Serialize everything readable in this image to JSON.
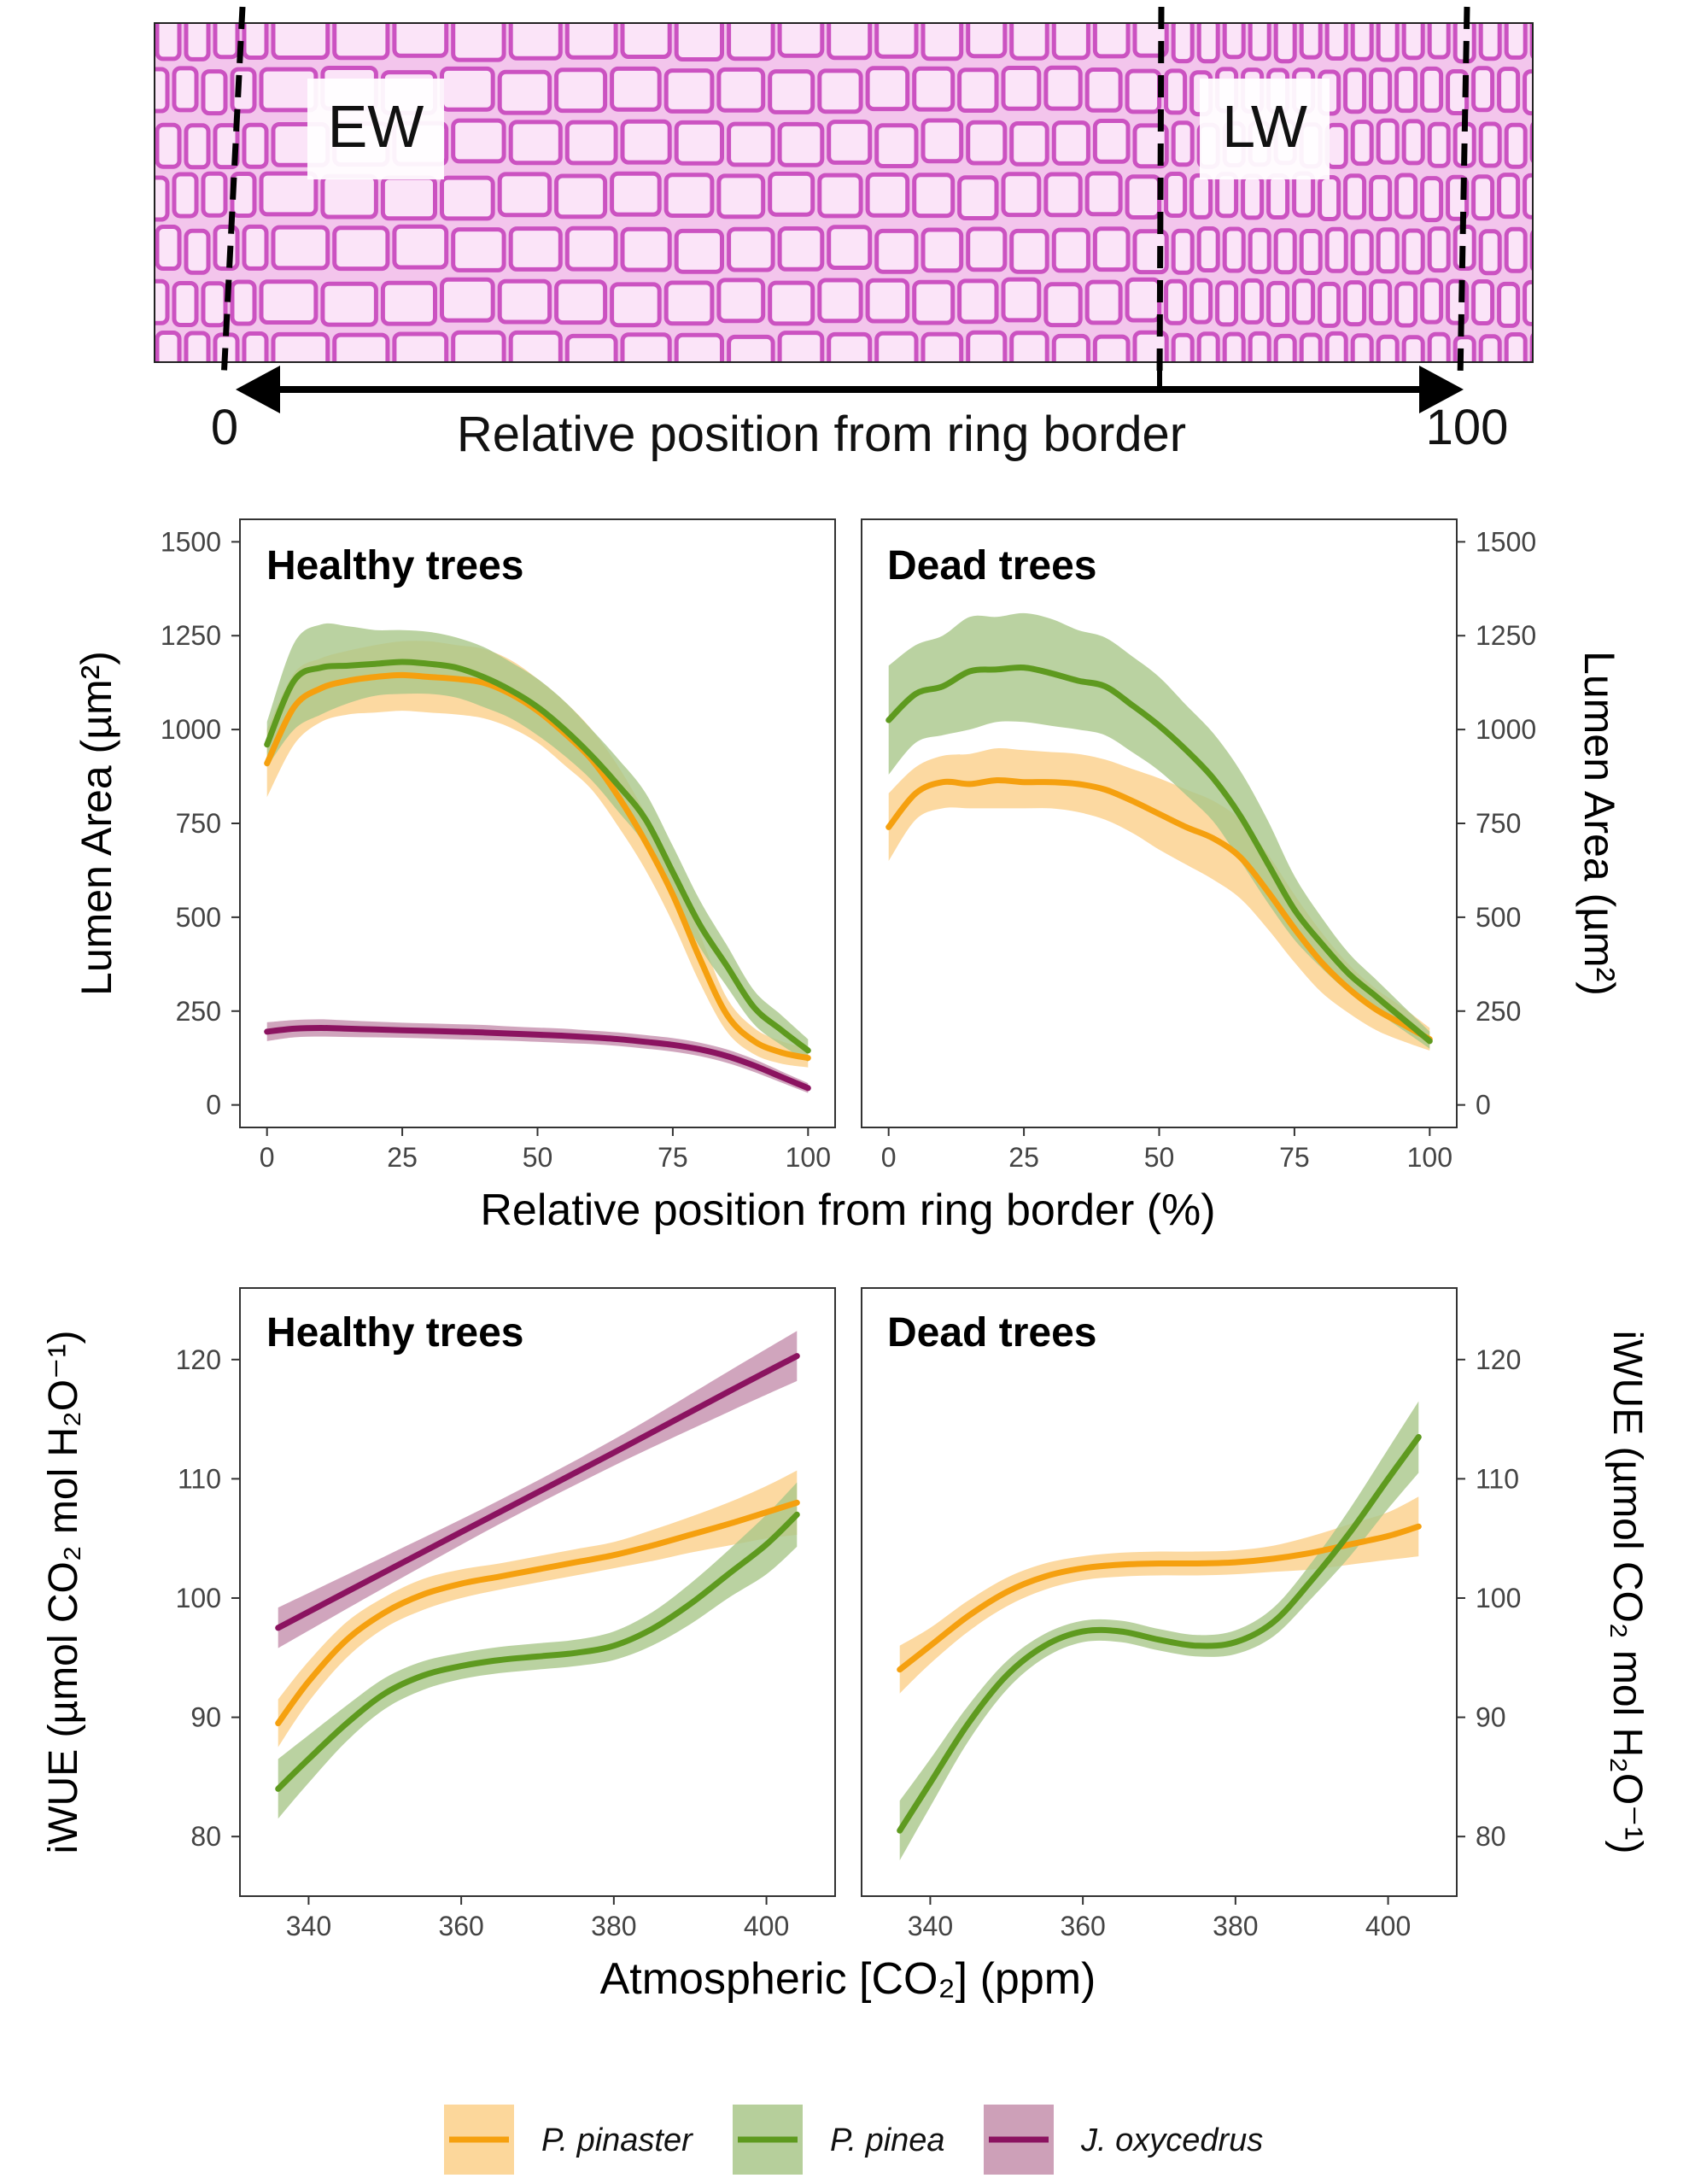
{
  "micrograph": {
    "ew_label": "EW",
    "lw_label": "LW",
    "axis_start": "0",
    "axis_end": "100",
    "axis_label": "Relative position from ring border"
  },
  "colors": {
    "pinaster": "#f5a00f",
    "pinaster_band": "#fbd08a",
    "pinea": "#5e9a1f",
    "pinea_band": "#a9c789",
    "oxycedrus": "#8b1360",
    "oxycedrus_band": "#c48fac",
    "tissue_bg": "#f3c5ec",
    "cell_wall": "#cb52c1"
  },
  "legend": {
    "items": [
      {
        "label": "P. pinaster",
        "color_key": "pinaster"
      },
      {
        "label": "P. pinea",
        "color_key": "pinea"
      },
      {
        "label": "J. oxycedrus",
        "color_key": "oxycedrus"
      }
    ]
  },
  "chart_data": [
    {
      "type": "line",
      "title": "Healthy trees",
      "xlabel": "Relative position from ring border (%)",
      "ylabel": "Lumen Area (µm²)",
      "xlim": [
        -5,
        105
      ],
      "ylim": [
        -60,
        1560
      ],
      "xticks": [
        0,
        25,
        50,
        75,
        100
      ],
      "yticks": [
        0,
        250,
        500,
        750,
        1000,
        1250,
        1500
      ],
      "series": [
        {
          "name": "P. pinaster",
          "color_key": "pinaster",
          "x": [
            0,
            5,
            10,
            15,
            20,
            25,
            30,
            35,
            40,
            45,
            50,
            55,
            60,
            65,
            70,
            75,
            80,
            85,
            90,
            95,
            100
          ],
          "y": [
            910,
            1060,
            1110,
            1130,
            1140,
            1145,
            1140,
            1135,
            1125,
            1095,
            1050,
            990,
            920,
            820,
            700,
            560,
            390,
            240,
            170,
            140,
            125
          ],
          "lower": [
            820,
            960,
            1020,
            1040,
            1045,
            1050,
            1045,
            1040,
            1030,
            1005,
            965,
            905,
            840,
            740,
            625,
            485,
            325,
            195,
            135,
            110,
            100
          ],
          "upper": [
            1000,
            1150,
            1190,
            1210,
            1225,
            1235,
            1235,
            1225,
            1215,
            1185,
            1135,
            1075,
            1000,
            900,
            775,
            635,
            455,
            285,
            205,
            170,
            150
          ]
        },
        {
          "name": "P. pinea",
          "color_key": "pinea",
          "x": [
            0,
            5,
            10,
            15,
            20,
            25,
            30,
            35,
            40,
            45,
            50,
            55,
            60,
            65,
            70,
            75,
            80,
            85,
            90,
            95,
            100
          ],
          "y": [
            960,
            1130,
            1165,
            1170,
            1175,
            1180,
            1175,
            1165,
            1140,
            1105,
            1060,
            1000,
            930,
            850,
            760,
            620,
            480,
            370,
            260,
            200,
            145
          ],
          "lower": [
            900,
            1000,
            1040,
            1070,
            1090,
            1095,
            1095,
            1085,
            1060,
            1030,
            985,
            930,
            865,
            780,
            690,
            555,
            420,
            315,
            215,
            160,
            115
          ],
          "upper": [
            1020,
            1230,
            1280,
            1275,
            1265,
            1265,
            1260,
            1245,
            1220,
            1180,
            1135,
            1075,
            1000,
            920,
            830,
            690,
            545,
            425,
            305,
            240,
            175
          ]
        },
        {
          "name": "J. oxycedrus",
          "color_key": "oxycedrus",
          "x": [
            0,
            5,
            10,
            15,
            20,
            25,
            30,
            35,
            40,
            45,
            50,
            55,
            60,
            65,
            70,
            75,
            80,
            85,
            90,
            95,
            100
          ],
          "y": [
            195,
            203,
            205,
            203,
            201,
            199,
            197,
            195,
            193,
            190,
            187,
            184,
            180,
            175,
            168,
            160,
            148,
            130,
            105,
            75,
            45
          ],
          "lower": [
            170,
            180,
            182,
            181,
            180,
            179,
            177,
            175,
            173,
            171,
            168,
            165,
            162,
            157,
            150,
            142,
            130,
            112,
            88,
            60,
            32
          ],
          "upper": [
            220,
            226,
            228,
            225,
            222,
            219,
            217,
            215,
            213,
            209,
            206,
            203,
            198,
            193,
            186,
            178,
            166,
            148,
            122,
            90,
            58
          ]
        }
      ]
    },
    {
      "type": "line",
      "title": "Dead trees",
      "xlabel": "Relative position from ring border (%)",
      "ylabel": "Lumen Area (µm²)",
      "xlim": [
        -5,
        105
      ],
      "ylim": [
        -60,
        1560
      ],
      "xticks": [
        0,
        25,
        50,
        75,
        100
      ],
      "yticks": [
        0,
        250,
        500,
        750,
        1000,
        1250,
        1500
      ],
      "series": [
        {
          "name": "P. pinaster",
          "color_key": "pinaster",
          "x": [
            0,
            5,
            10,
            15,
            20,
            25,
            30,
            35,
            40,
            45,
            50,
            55,
            60,
            65,
            70,
            75,
            80,
            85,
            90,
            95,
            100
          ],
          "y": [
            740,
            830,
            860,
            855,
            865,
            860,
            860,
            855,
            840,
            810,
            775,
            740,
            710,
            660,
            570,
            470,
            380,
            310,
            255,
            215,
            175
          ],
          "lower": [
            650,
            760,
            790,
            790,
            790,
            790,
            790,
            780,
            760,
            725,
            680,
            640,
            600,
            550,
            470,
            380,
            300,
            245,
            200,
            170,
            145
          ],
          "upper": [
            830,
            900,
            930,
            935,
            950,
            945,
            940,
            935,
            920,
            895,
            870,
            840,
            810,
            760,
            670,
            560,
            460,
            375,
            310,
            260,
            205
          ]
        },
        {
          "name": "P. pinea",
          "color_key": "pinea",
          "x": [
            0,
            5,
            10,
            15,
            20,
            25,
            30,
            35,
            40,
            45,
            50,
            55,
            60,
            65,
            70,
            75,
            80,
            85,
            90,
            95,
            100
          ],
          "y": [
            1025,
            1095,
            1115,
            1155,
            1160,
            1165,
            1150,
            1130,
            1115,
            1065,
            1010,
            945,
            870,
            770,
            645,
            520,
            430,
            350,
            290,
            230,
            170
          ],
          "lower": [
            880,
            965,
            985,
            1000,
            1020,
            1020,
            1010,
            1000,
            985,
            940,
            890,
            825,
            755,
            650,
            540,
            440,
            365,
            300,
            250,
            200,
            150
          ],
          "upper": [
            1170,
            1225,
            1250,
            1300,
            1300,
            1310,
            1295,
            1265,
            1245,
            1195,
            1140,
            1065,
            990,
            890,
            760,
            610,
            500,
            405,
            335,
            265,
            195
          ]
        }
      ]
    },
    {
      "type": "line",
      "title": "Healthy trees",
      "xlabel": "Atmospheric [CO₂] (ppm)",
      "ylabel": "iWUE (µmol CO₂ mol H₂O⁻¹)",
      "xlim": [
        331,
        409
      ],
      "ylim": [
        75,
        126
      ],
      "xticks": [
        340,
        360,
        380,
        400
      ],
      "yticks": [
        80,
        90,
        100,
        110,
        120
      ],
      "series": [
        {
          "name": "P. pinaster",
          "color_key": "pinaster",
          "x": [
            336,
            340,
            345,
            350,
            355,
            360,
            365,
            370,
            375,
            380,
            385,
            390,
            395,
            400,
            404
          ],
          "y": [
            89.5,
            93.0,
            96.5,
            98.8,
            100.3,
            101.2,
            101.8,
            102.4,
            103.0,
            103.6,
            104.4,
            105.3,
            106.2,
            107.2,
            108.0
          ],
          "lower": [
            87.5,
            91.3,
            95.0,
            97.5,
            99.0,
            100.0,
            100.7,
            101.3,
            101.9,
            102.5,
            103.1,
            103.8,
            104.4,
            105.0,
            105.3
          ],
          "upper": [
            91.5,
            94.7,
            98.0,
            100.1,
            101.6,
            102.4,
            102.9,
            103.5,
            104.1,
            104.7,
            105.7,
            106.8,
            108.0,
            109.4,
            110.7
          ]
        },
        {
          "name": "P. pinea",
          "color_key": "pinea",
          "x": [
            336,
            340,
            345,
            350,
            355,
            360,
            365,
            370,
            375,
            380,
            385,
            390,
            395,
            400,
            404
          ],
          "y": [
            84.0,
            86.5,
            89.5,
            92.0,
            93.5,
            94.3,
            94.8,
            95.1,
            95.4,
            96.0,
            97.4,
            99.5,
            102.0,
            104.5,
            107.0
          ],
          "lower": [
            81.5,
            84.5,
            88.0,
            90.7,
            92.3,
            93.2,
            93.7,
            94.0,
            94.3,
            94.8,
            96.0,
            97.8,
            100.0,
            102.0,
            104.3
          ],
          "upper": [
            86.5,
            88.5,
            91.0,
            93.3,
            94.7,
            95.4,
            95.9,
            96.2,
            96.5,
            97.2,
            98.8,
            101.2,
            104.0,
            107.0,
            109.7
          ]
        },
        {
          "name": "J. oxycedrus",
          "color_key": "oxycedrus",
          "x": [
            336,
            350,
            365,
            380,
            395,
            404
          ],
          "y": [
            97.5,
            102.2,
            107.2,
            112.2,
            117.3,
            120.3
          ],
          "lower": [
            95.8,
            100.9,
            106.2,
            111.1,
            115.6,
            118.2
          ],
          "upper": [
            99.2,
            103.5,
            108.2,
            113.3,
            119.0,
            122.4
          ]
        }
      ]
    },
    {
      "type": "line",
      "title": "Dead trees",
      "xlabel": "Atmospheric [CO₂] (ppm)",
      "ylabel": "iWUE (µmol CO₂ mol H₂O⁻¹)",
      "xlim": [
        331,
        409
      ],
      "ylim": [
        75,
        126
      ],
      "xticks": [
        340,
        360,
        380,
        400
      ],
      "yticks": [
        80,
        90,
        100,
        110,
        120
      ],
      "series": [
        {
          "name": "P. pinaster",
          "color_key": "pinaster",
          "x": [
            336,
            340,
            345,
            350,
            355,
            360,
            365,
            370,
            375,
            380,
            385,
            390,
            395,
            400,
            404
          ],
          "y": [
            94.0,
            96.0,
            98.5,
            100.5,
            101.8,
            102.5,
            102.8,
            102.9,
            102.9,
            103.0,
            103.3,
            103.8,
            104.5,
            105.2,
            106.0
          ],
          "lower": [
            92.0,
            94.5,
            97.2,
            99.3,
            100.7,
            101.5,
            101.8,
            101.9,
            101.9,
            102.0,
            102.2,
            102.4,
            102.8,
            103.2,
            103.5
          ],
          "upper": [
            96.0,
            97.5,
            99.8,
            101.7,
            102.9,
            103.5,
            103.8,
            103.9,
            103.9,
            104.0,
            104.4,
            105.2,
            106.2,
            107.2,
            108.5
          ]
        },
        {
          "name": "P. pinea",
          "color_key": "pinea",
          "x": [
            336,
            340,
            345,
            350,
            355,
            360,
            365,
            370,
            375,
            380,
            385,
            390,
            395,
            400,
            404
          ],
          "y": [
            80.5,
            84.5,
            89.5,
            93.5,
            96.0,
            97.2,
            97.2,
            96.5,
            96.0,
            96.3,
            98.0,
            101.5,
            105.5,
            110.0,
            113.5
          ],
          "lower": [
            78.0,
            82.5,
            88.0,
            92.3,
            95.0,
            96.3,
            96.3,
            95.6,
            95.1,
            95.3,
            96.8,
            100.0,
            103.5,
            107.5,
            110.5
          ],
          "upper": [
            83.0,
            86.5,
            91.0,
            94.7,
            97.0,
            98.1,
            98.1,
            97.4,
            96.9,
            97.3,
            99.2,
            103.0,
            107.5,
            112.5,
            116.5
          ]
        }
      ]
    }
  ]
}
